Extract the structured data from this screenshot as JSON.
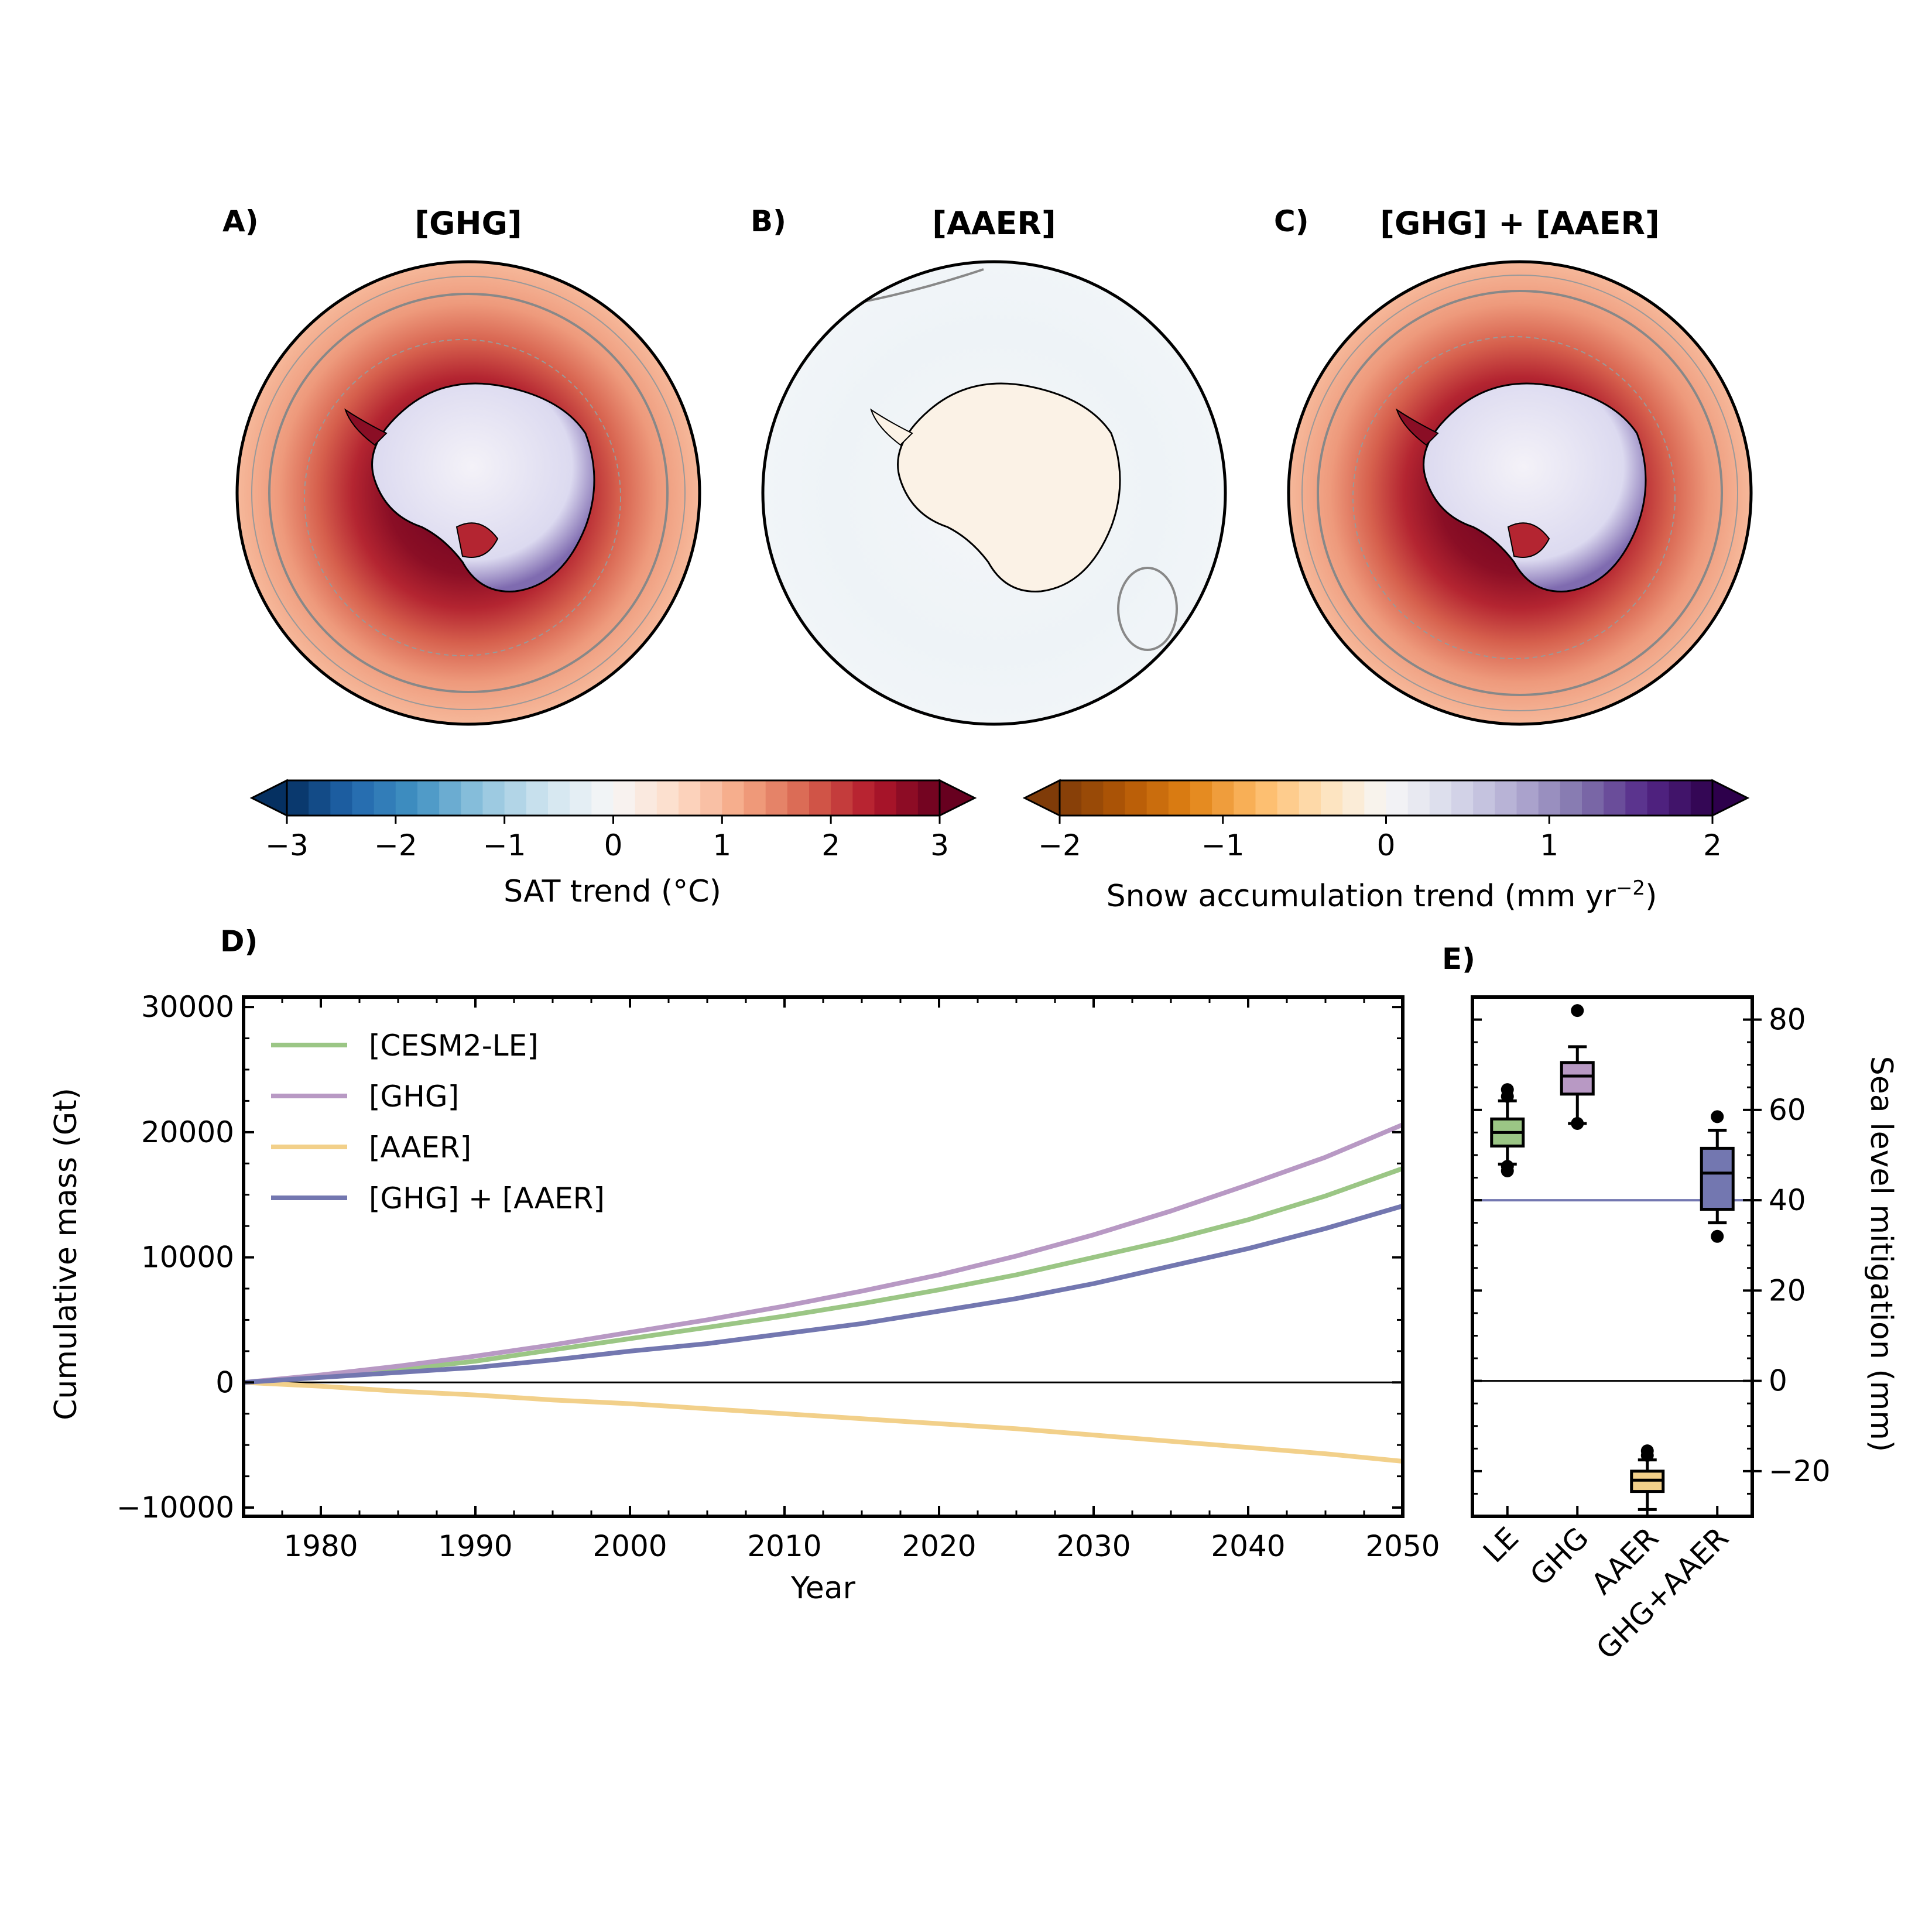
{
  "maps": [
    {
      "letter": "A)",
      "title": "[GHG]",
      "warming": 1.0
    },
    {
      "letter": "B)",
      "title": "[AAER]",
      "warming": 0.0
    },
    {
      "letter": "C)",
      "title": "[GHG] + [AAER]",
      "warming": 0.9
    }
  ],
  "colorbars": [
    {
      "label": "SAT trend (°C)",
      "ticks": [
        "−3",
        "−2",
        "−1",
        "0",
        "1",
        "2",
        "3"
      ],
      "range": [
        -3,
        3
      ],
      "colormap": "RdBu_r"
    },
    {
      "label_main": "Snow accumulation trend (mm yr",
      "label_sup": "−2",
      "label_end": ")",
      "ticks": [
        "−2",
        "−1",
        "0",
        "1",
        "2"
      ],
      "range": [
        -2,
        2
      ],
      "colormap": "PuOr"
    }
  ],
  "colors": {
    "cesm2le": "#9bc685",
    "ghg": "#b899c4",
    "aaer": "#f2d08a",
    "ghg_aaer": "#7377b0"
  },
  "chart_data": [
    {
      "type": "line",
      "panel": "D)",
      "xlabel": "Year",
      "ylabel": "Cumulative mass (Gt)",
      "xlim": [
        1975,
        2050
      ],
      "ylim": [
        -10700,
        30800
      ],
      "xticks": [
        1980,
        1990,
        2000,
        2010,
        2020,
        2030,
        2040,
        2050
      ],
      "yticks": [
        -10000,
        0,
        10000,
        20000,
        30000
      ],
      "ytick_labels": [
        "−10000",
        "0",
        "10000",
        "20000",
        "30000"
      ],
      "x": [
        1975,
        1980,
        1985,
        1990,
        1995,
        2000,
        2005,
        2010,
        2015,
        2020,
        2025,
        2030,
        2035,
        2040,
        2045,
        2050
      ],
      "series": [
        {
          "name": "[CESM2-LE]",
          "color_key": "cesm2le",
          "values": [
            0,
            500,
            1000,
            1700,
            2600,
            3500,
            4400,
            5300,
            6300,
            7400,
            8600,
            10000,
            11400,
            13000,
            14900,
            17100
          ]
        },
        {
          "name": "[GHG]",
          "color_key": "ghg",
          "values": [
            0,
            600,
            1300,
            2100,
            3000,
            4000,
            5000,
            6100,
            7300,
            8600,
            10100,
            11800,
            13700,
            15800,
            18000,
            20600
          ]
        },
        {
          "name": "[AAER]",
          "color_key": "aaer",
          "values": [
            0,
            -300,
            -700,
            -1000,
            -1400,
            -1700,
            -2100,
            -2500,
            -2900,
            -3300,
            -3700,
            -4200,
            -4700,
            -5200,
            -5700,
            -6300
          ]
        },
        {
          "name": "[GHG] + [AAER]",
          "color_key": "ghg_aaer",
          "values": [
            0,
            400,
            800,
            1200,
            1800,
            2500,
            3100,
            3900,
            4700,
            5700,
            6700,
            7900,
            9300,
            10700,
            12300,
            14100
          ]
        }
      ],
      "zero_line": true,
      "legend": "top-left"
    },
    {
      "type": "box",
      "panel": "E)",
      "ylabel": "Sea level mitigation (mm)",
      "ylim": [
        -30,
        85
      ],
      "yticks": [
        -20,
        0,
        20,
        40,
        60,
        80
      ],
      "ytick_labels": [
        "−20",
        "0",
        "20",
        "40",
        "60",
        "80"
      ],
      "categories": [
        "LE",
        "GHG",
        "AAER",
        "GHG+AAER"
      ],
      "boxes": [
        {
          "color_key": "cesm2le",
          "whisker_low": 48,
          "q1": 52,
          "median": 55,
          "q3": 58,
          "whisker_high": 62,
          "outliers": [
            46.5,
            47.5,
            63,
            64.5
          ]
        },
        {
          "color_key": "ghg",
          "whisker_low": 57,
          "q1": 63.5,
          "median": 67.5,
          "q3": 70.5,
          "whisker_high": 74,
          "outliers": [
            57,
            82
          ]
        },
        {
          "color_key": "aaer",
          "whisker_low": -28.5,
          "q1": -24.5,
          "median": -22,
          "q3": -20,
          "whisker_high": -17.5,
          "outliers": [
            -15.5,
            -16.5
          ]
        },
        {
          "color_key": "ghg_aaer",
          "whisker_low": 35,
          "q1": 38,
          "median": 46,
          "q3": 51.5,
          "whisker_high": 55.5,
          "outliers": [
            32,
            58.5
          ]
        }
      ],
      "reference_line": {
        "value": 40,
        "color_key": "ghg_aaer"
      },
      "zero_line": true
    }
  ]
}
